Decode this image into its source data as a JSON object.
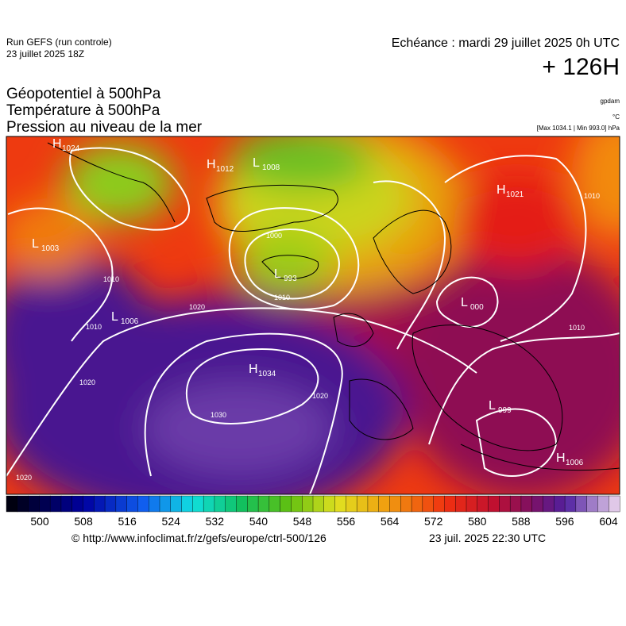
{
  "header": {
    "run": "Run GEFS (run controle)",
    "run_date": "23 juillet 2025 18Z",
    "valid": "Echéance : mardi 29 juillet 2025 0h UTC",
    "lead": "+ 126H"
  },
  "fields": [
    "Géopotentiel à 500hPa",
    "Température à 500hPa",
    "Pression au niveau de la mer"
  ],
  "units": {
    "geopotential": "gpdam",
    "temperature": "°C",
    "pressure_range": "[Max 1034.1 | Min 993.0] hPa"
  },
  "centers": [
    {
      "letter": "H",
      "value": "1024"
    },
    {
      "letter": "L",
      "value": "1003"
    },
    {
      "letter": "H",
      "value": "1012"
    },
    {
      "letter": "L",
      "value": "1008"
    },
    {
      "letter": "L",
      "value": "993"
    },
    {
      "letter": "L",
      "value": "1006"
    },
    {
      "letter": "H",
      "value": "1034"
    },
    {
      "letter": "H",
      "value": "1021"
    },
    {
      "letter": "L",
      "value": "000"
    },
    {
      "letter": "L",
      "value": "999"
    },
    {
      "letter": "H",
      "value": "1006"
    }
  ],
  "isobar_labels": [
    "1020",
    "1020",
    "1030",
    "1020",
    "1010",
    "1010",
    "1000",
    "1010",
    "1010",
    "1020",
    "1010"
  ],
  "colorbar": {
    "labels": [
      500,
      508,
      516,
      524,
      532,
      540,
      548,
      556,
      564,
      572,
      580,
      588,
      596,
      604
    ]
  },
  "footer": {
    "url": "© http://www.infoclimat.fr/z/gefs/europe/ctrl-500/126",
    "generated": "23 juil. 2025 22:30 UTC"
  }
}
